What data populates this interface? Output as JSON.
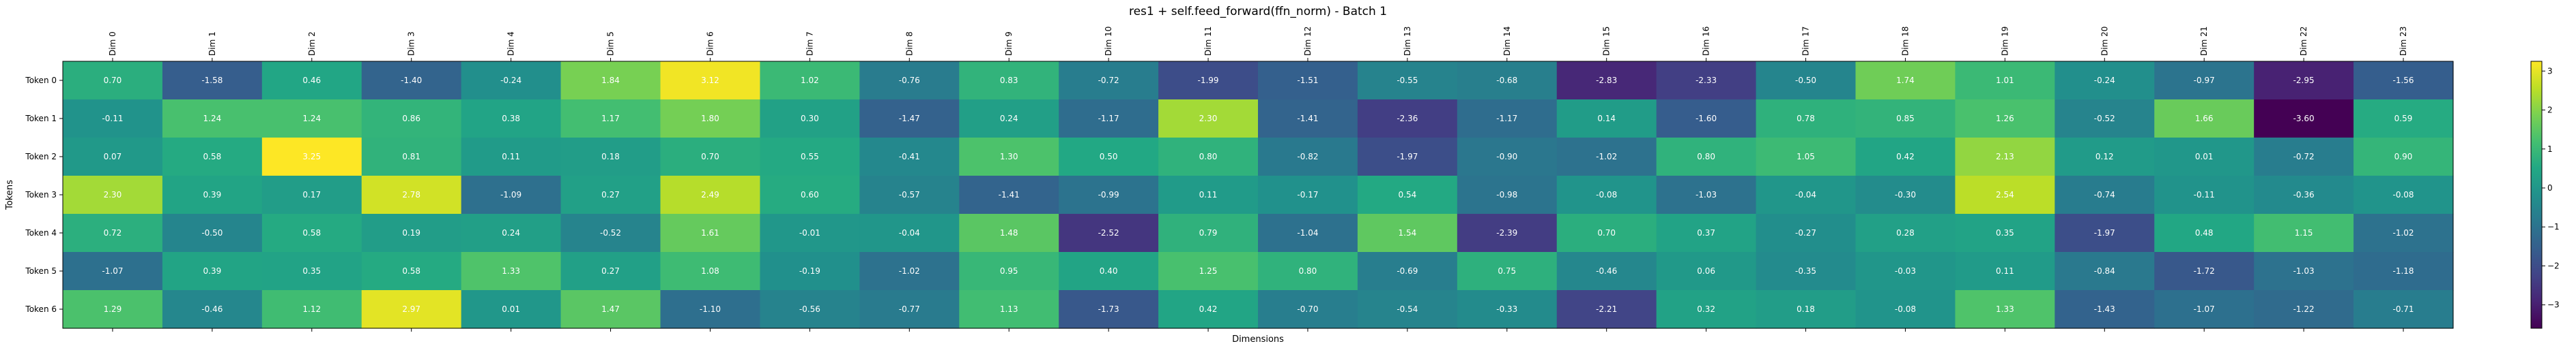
{
  "chart_data": {
    "type": "heatmap",
    "title": "res1 + self.feed_forward(ffn_norm) - Batch 1",
    "xlabel": "Dimensions",
    "ylabel": "Tokens",
    "x_labels": [
      "Dim 0",
      "Dim 1",
      "Dim 2",
      "Dim 3",
      "Dim 4",
      "Dim 5",
      "Dim 6",
      "Dim 7",
      "Dim 8",
      "Dim 9",
      "Dim 10",
      "Dim 11",
      "Dim 12",
      "Dim 13",
      "Dim 14",
      "Dim 15",
      "Dim 16",
      "Dim 17",
      "Dim 18",
      "Dim 19",
      "Dim 20",
      "Dim 21",
      "Dim 22",
      "Dim 23"
    ],
    "y_labels": [
      "Token 0",
      "Token 1",
      "Token 2",
      "Token 3",
      "Token 4",
      "Token 5",
      "Token 6"
    ],
    "values": [
      [
        0.7,
        -1.58,
        0.46,
        -1.4,
        -0.24,
        1.84,
        3.12,
        1.02,
        -0.76,
        0.83,
        -0.72,
        -1.99,
        -1.51,
        -0.55,
        -0.68,
        -2.83,
        -2.33,
        -0.5,
        1.74,
        1.01,
        -0.24,
        -0.97,
        -2.95,
        -1.56
      ],
      [
        -0.11,
        1.24,
        1.24,
        0.86,
        0.38,
        1.17,
        1.8,
        0.3,
        -1.47,
        0.24,
        -1.17,
        2.3,
        -1.41,
        -2.36,
        -1.17,
        0.14,
        -1.6,
        0.78,
        0.85,
        1.26,
        -0.52,
        1.66,
        -3.6,
        0.59
      ],
      [
        0.07,
        0.58,
        3.25,
        0.81,
        0.11,
        0.18,
        0.7,
        0.55,
        -0.41,
        1.3,
        0.5,
        0.8,
        -0.82,
        -1.97,
        -0.9,
        -1.02,
        0.8,
        1.05,
        0.42,
        2.13,
        0.12,
        0.01,
        -0.72,
        0.9
      ],
      [
        2.3,
        0.39,
        0.17,
        2.78,
        -1.09,
        0.27,
        2.49,
        0.6,
        -0.57,
        -1.41,
        -0.99,
        0.11,
        -0.17,
        0.54,
        -0.98,
        -0.08,
        -1.03,
        -0.04,
        -0.3,
        2.54,
        -0.74,
        -0.11,
        -0.36,
        -0.08
      ],
      [
        0.72,
        -0.5,
        0.58,
        0.19,
        0.24,
        -0.52,
        1.61,
        -0.01,
        -0.04,
        1.48,
        -2.52,
        0.79,
        -1.04,
        1.54,
        -2.39,
        0.7,
        0.37,
        -0.27,
        0.28,
        0.35,
        -1.97,
        0.48,
        1.15,
        -1.02
      ],
      [
        -1.07,
        0.39,
        0.35,
        0.58,
        1.33,
        0.27,
        1.08,
        -0.19,
        -1.02,
        0.95,
        0.4,
        1.25,
        0.8,
        -0.69,
        0.75,
        -0.46,
        0.06,
        -0.35,
        -0.03,
        0.11,
        -0.84,
        -1.72,
        -1.03,
        -1.18
      ],
      [
        1.29,
        -0.46,
        1.12,
        2.97,
        0.01,
        1.47,
        -1.1,
        -0.56,
        -0.77,
        1.13,
        -1.73,
        0.42,
        -0.7,
        -0.54,
        -0.33,
        -2.21,
        0.32,
        0.18,
        -0.08,
        1.33,
        -1.43,
        -1.07,
        -1.22,
        -0.71
      ]
    ],
    "colormap": "viridis",
    "vmin": -3.6,
    "vmax": 3.25,
    "colorbar_ticks": [
      3,
      2,
      1,
      0,
      -1,
      -2,
      -3
    ],
    "cell_labels_format": "2 decimals",
    "grid": false
  }
}
